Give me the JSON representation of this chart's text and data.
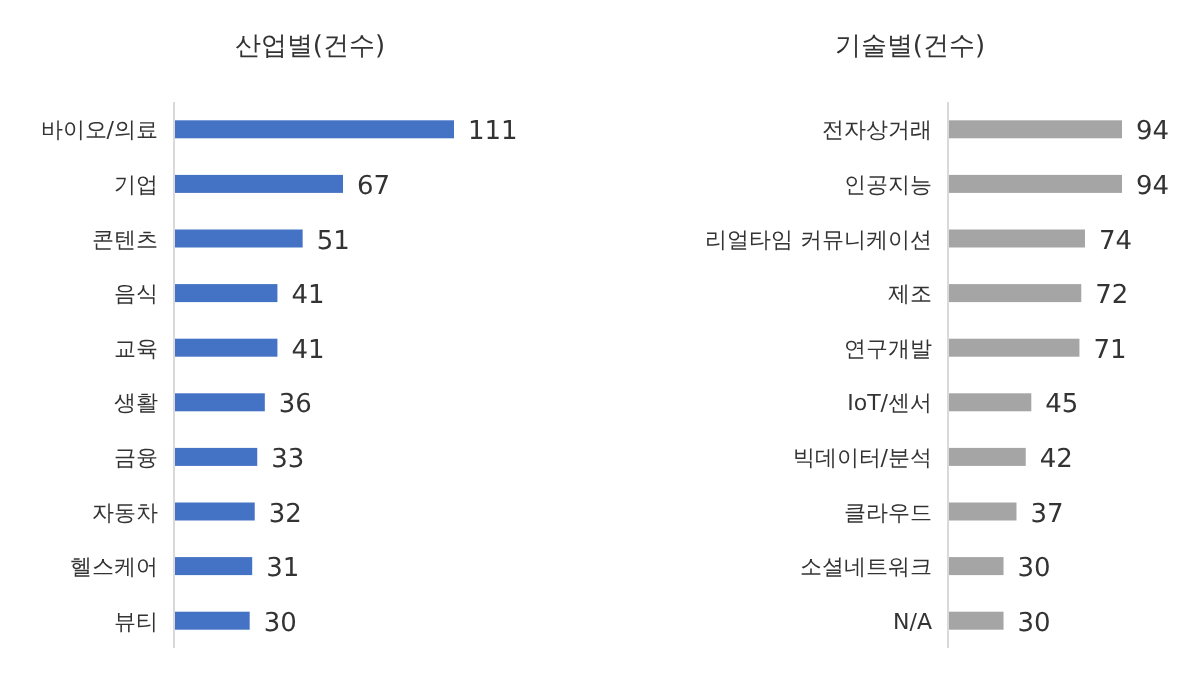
{
  "chart_data": [
    {
      "type": "bar",
      "orientation": "horizontal",
      "title": "산업별(건수)",
      "categories": [
        "바이오/의료",
        "기업",
        "콘텐츠",
        "음식",
        "교육",
        "생활",
        "금융",
        "자동차",
        "헬스케어",
        "뷰티"
      ],
      "values": [
        111,
        67,
        51,
        41,
        41,
        36,
        33,
        32,
        31,
        30
      ],
      "color": "#4472c4",
      "data_labels": true
    },
    {
      "type": "bar",
      "orientation": "horizontal",
      "title": "기술별(건수)",
      "categories": [
        "전자상거래",
        "인공지능",
        "리얼타임 커뮤니케이션",
        "제조",
        "연구개발",
        "IoT/센서",
        "빅데이터/분석",
        "클라우드",
        "소셜네트워크",
        "N/A"
      ],
      "values": [
        94,
        94,
        74,
        72,
        71,
        45,
        42,
        37,
        30,
        30
      ],
      "color": "#a5a5a5",
      "data_labels": true
    }
  ]
}
